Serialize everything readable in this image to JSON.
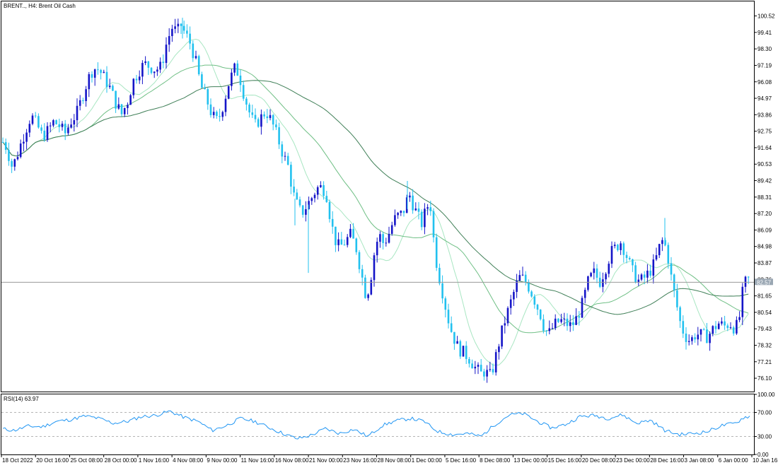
{
  "window": {
    "title": "BRENT.., H4:  Brent Oil Cash"
  },
  "colors": {
    "bull": "#1515c8",
    "bear": "#22c1ef",
    "ma_fast": "#a8e6c2",
    "ma_mid": "#6fbf85",
    "ma_slow": "#3f7f57",
    "rsi": "#2196f3",
    "price_line": "#9a9a9a",
    "price_tag": "#9aa7b3"
  },
  "chart_data": {
    "type": "candlestick",
    "symbol": "BRENT..",
    "timeframe": "H4",
    "instrument": "Brent Oil Cash",
    "current_price": 82.57,
    "current_price_label": "82.57",
    "ylim": [
      75.2,
      101.5
    ],
    "y_ticks": [
      "100.52",
      "99.41",
      "98.30",
      "97.19",
      "96.08",
      "94.97",
      "93.86",
      "92.75",
      "91.64",
      "90.53",
      "89.42",
      "88.31",
      "87.20",
      "86.09",
      "84.98",
      "83.87",
      "82.76",
      "81.65",
      "80.54",
      "79.43",
      "78.32",
      "77.21",
      "76.10"
    ],
    "x_ticks": [
      "18 Oct 2022",
      "20 Oct 16:00",
      "25 Oct 08:00",
      "28 Oct 00:00",
      "1 Nov 16:00",
      "4 Nov 08:00",
      "9 Nov 00:00",
      "11 Nov 16:00",
      "16 Nov 08:00",
      "21 Nov 00:00",
      "23 Nov 16:00",
      "28 Nov 08:00",
      "1 Dec 00:00",
      "5 Dec 16:00",
      "8 Dec 08:00",
      "13 Dec 00:00",
      "15 Dec 16:00",
      "20 Dec 08:00",
      "23 Dec 00:00",
      "28 Dec 16:00",
      "3 Jan 08:00",
      "6 Jan 00:00",
      "10 Jan 16:00"
    ],
    "price_path": [
      [
        0,
        92.3
      ],
      [
        10,
        91.6
      ],
      [
        16,
        90.4
      ],
      [
        22,
        90.8
      ],
      [
        28,
        91.7
      ],
      [
        36,
        92.8
      ],
      [
        44,
        93.8
      ],
      [
        52,
        93.2
      ],
      [
        60,
        92.4
      ],
      [
        68,
        92.8
      ],
      [
        76,
        93.4
      ],
      [
        84,
        93.1
      ],
      [
        92,
        92.6
      ],
      [
        100,
        93.4
      ],
      [
        108,
        93.9
      ],
      [
        116,
        95.0
      ],
      [
        124,
        96.2
      ],
      [
        132,
        97.0
      ],
      [
        140,
        96.9
      ],
      [
        148,
        96.3
      ],
      [
        156,
        95.6
      ],
      [
        164,
        94.6
      ],
      [
        172,
        93.9
      ],
      [
        180,
        94.7
      ],
      [
        188,
        96.1
      ],
      [
        196,
        96.8
      ],
      [
        204,
        97.3
      ],
      [
        212,
        97.1
      ],
      [
        220,
        96.9
      ],
      [
        228,
        97.1
      ],
      [
        236,
        98.8
      ],
      [
        244,
        99.8
      ],
      [
        250,
        99.4
      ],
      [
        256,
        99.9
      ],
      [
        262,
        99.3
      ],
      [
        268,
        98.8
      ],
      [
        276,
        97.6
      ],
      [
        284,
        95.8
      ],
      [
        292,
        94.9
      ],
      [
        300,
        93.8
      ],
      [
        308,
        93.4
      ],
      [
        316,
        94.6
      ],
      [
        324,
        96.1
      ],
      [
        332,
        97.0
      ],
      [
        338,
        96.6
      ],
      [
        344,
        95.4
      ],
      [
        352,
        94.1
      ],
      [
        360,
        93.1
      ],
      [
        368,
        93.6
      ],
      [
        376,
        94.1
      ],
      [
        384,
        93.4
      ],
      [
        392,
        92.4
      ],
      [
        400,
        91.2
      ],
      [
        408,
        90.3
      ],
      [
        414,
        88.6
      ],
      [
        420,
        87.8
      ],
      [
        426,
        87.2
      ],
      [
        432,
        87.6
      ],
      [
        440,
        88.2
      ],
      [
        448,
        88.9
      ],
      [
        456,
        89.0
      ],
      [
        462,
        88.4
      ],
      [
        468,
        86.6
      ],
      [
        474,
        85.4
      ],
      [
        480,
        84.9
      ],
      [
        488,
        85.3
      ],
      [
        496,
        85.8
      ],
      [
        504,
        84.8
      ],
      [
        512,
        82.9
      ],
      [
        518,
        81.5
      ],
      [
        524,
        82.8
      ],
      [
        530,
        84.8
      ],
      [
        536,
        85.8
      ],
      [
        542,
        85.2
      ],
      [
        548,
        85.6
      ],
      [
        554,
        86.4
      ],
      [
        560,
        87.0
      ],
      [
        566,
        87.1
      ],
      [
        572,
        87.5
      ],
      [
        578,
        88.6
      ],
      [
        584,
        87.8
      ],
      [
        590,
        87.1
      ],
      [
        596,
        86.5
      ],
      [
        602,
        87.4
      ],
      [
        608,
        88.1
      ],
      [
        612,
        85.9
      ],
      [
        618,
        83.6
      ],
      [
        624,
        82.3
      ],
      [
        630,
        80.9
      ],
      [
        636,
        79.6
      ],
      [
        642,
        78.8
      ],
      [
        648,
        78.1
      ],
      [
        656,
        77.8
      ],
      [
        664,
        77.4
      ],
      [
        672,
        76.8
      ],
      [
        680,
        76.4
      ],
      [
        686,
        76.6
      ],
      [
        692,
        76.2
      ],
      [
        698,
        76.9
      ],
      [
        704,
        78.2
      ],
      [
        712,
        79.7
      ],
      [
        720,
        80.9
      ],
      [
        728,
        82.1
      ],
      [
        734,
        82.9
      ],
      [
        740,
        82.8
      ],
      [
        746,
        82.4
      ],
      [
        752,
        81.8
      ],
      [
        758,
        81.1
      ],
      [
        764,
        80.4
      ],
      [
        770,
        79.4
      ],
      [
        776,
        79.1
      ],
      [
        784,
        79.7
      ],
      [
        792,
        80.0
      ],
      [
        800,
        79.8
      ],
      [
        808,
        79.6
      ],
      [
        816,
        80.2
      ],
      [
        824,
        81.2
      ],
      [
        832,
        82.7
      ],
      [
        840,
        83.2
      ],
      [
        848,
        82.6
      ],
      [
        856,
        83.5
      ],
      [
        864,
        84.6
      ],
      [
        872,
        85.0
      ],
      [
        878,
        85.3
      ],
      [
        884,
        84.6
      ],
      [
        890,
        83.8
      ],
      [
        896,
        83.1
      ],
      [
        904,
        82.6
      ],
      [
        912,
        82.9
      ],
      [
        920,
        83.4
      ],
      [
        926,
        83.9
      ],
      [
        932,
        84.9
      ],
      [
        938,
        85.5
      ],
      [
        944,
        84.4
      ],
      [
        950,
        82.6
      ],
      [
        956,
        81.2
      ],
      [
        962,
        79.8
      ],
      [
        968,
        79.0
      ],
      [
        976,
        78.6
      ],
      [
        984,
        79.1
      ],
      [
        992,
        79.0
      ],
      [
        1000,
        78.9
      ],
      [
        1008,
        79.4
      ],
      [
        1016,
        79.8
      ],
      [
        1024,
        79.6
      ],
      [
        1032,
        79.8
      ],
      [
        1040,
        79.4
      ],
      [
        1046,
        80.3
      ],
      [
        1050,
        81.9
      ],
      [
        1056,
        82.9
      ],
      [
        1062,
        82.57
      ]
    ],
    "rsi": {
      "label": "RSI(14) 63.97",
      "period": 14,
      "value": 63.97,
      "levels": [
        30.0,
        70.0
      ],
      "ylim": [
        0,
        100
      ],
      "y_ticks": [
        "100.00",
        "70.00",
        "30.00",
        "0.00"
      ],
      "path": [
        [
          0,
          43
        ],
        [
          20,
          40
        ],
        [
          40,
          47
        ],
        [
          60,
          46
        ],
        [
          80,
          55
        ],
        [
          100,
          58
        ],
        [
          120,
          64
        ],
        [
          140,
          60
        ],
        [
          160,
          52
        ],
        [
          180,
          55
        ],
        [
          200,
          63
        ],
        [
          220,
          65
        ],
        [
          240,
          72
        ],
        [
          260,
          62
        ],
        [
          280,
          55
        ],
        [
          300,
          40
        ],
        [
          320,
          48
        ],
        [
          340,
          60
        ],
        [
          360,
          55
        ],
        [
          380,
          45
        ],
        [
          400,
          35
        ],
        [
          420,
          26
        ],
        [
          440,
          32
        ],
        [
          460,
          43
        ],
        [
          480,
          35
        ],
        [
          500,
          42
        ],
        [
          520,
          30
        ],
        [
          540,
          48
        ],
        [
          560,
          56
        ],
        [
          580,
          60
        ],
        [
          600,
          55
        ],
        [
          610,
          45
        ],
        [
          620,
          38
        ],
        [
          640,
          33
        ],
        [
          660,
          35
        ],
        [
          680,
          30
        ],
        [
          700,
          50
        ],
        [
          720,
          66
        ],
        [
          740,
          68
        ],
        [
          760,
          55
        ],
        [
          780,
          44
        ],
        [
          800,
          50
        ],
        [
          820,
          63
        ],
        [
          840,
          65
        ],
        [
          860,
          60
        ],
        [
          880,
          66
        ],
        [
          900,
          52
        ],
        [
          920,
          57
        ],
        [
          940,
          40
        ],
        [
          960,
          33
        ],
        [
          980,
          35
        ],
        [
          1000,
          38
        ],
        [
          1020,
          48
        ],
        [
          1040,
          52
        ],
        [
          1052,
          62
        ],
        [
          1062,
          63.97
        ]
      ]
    }
  }
}
